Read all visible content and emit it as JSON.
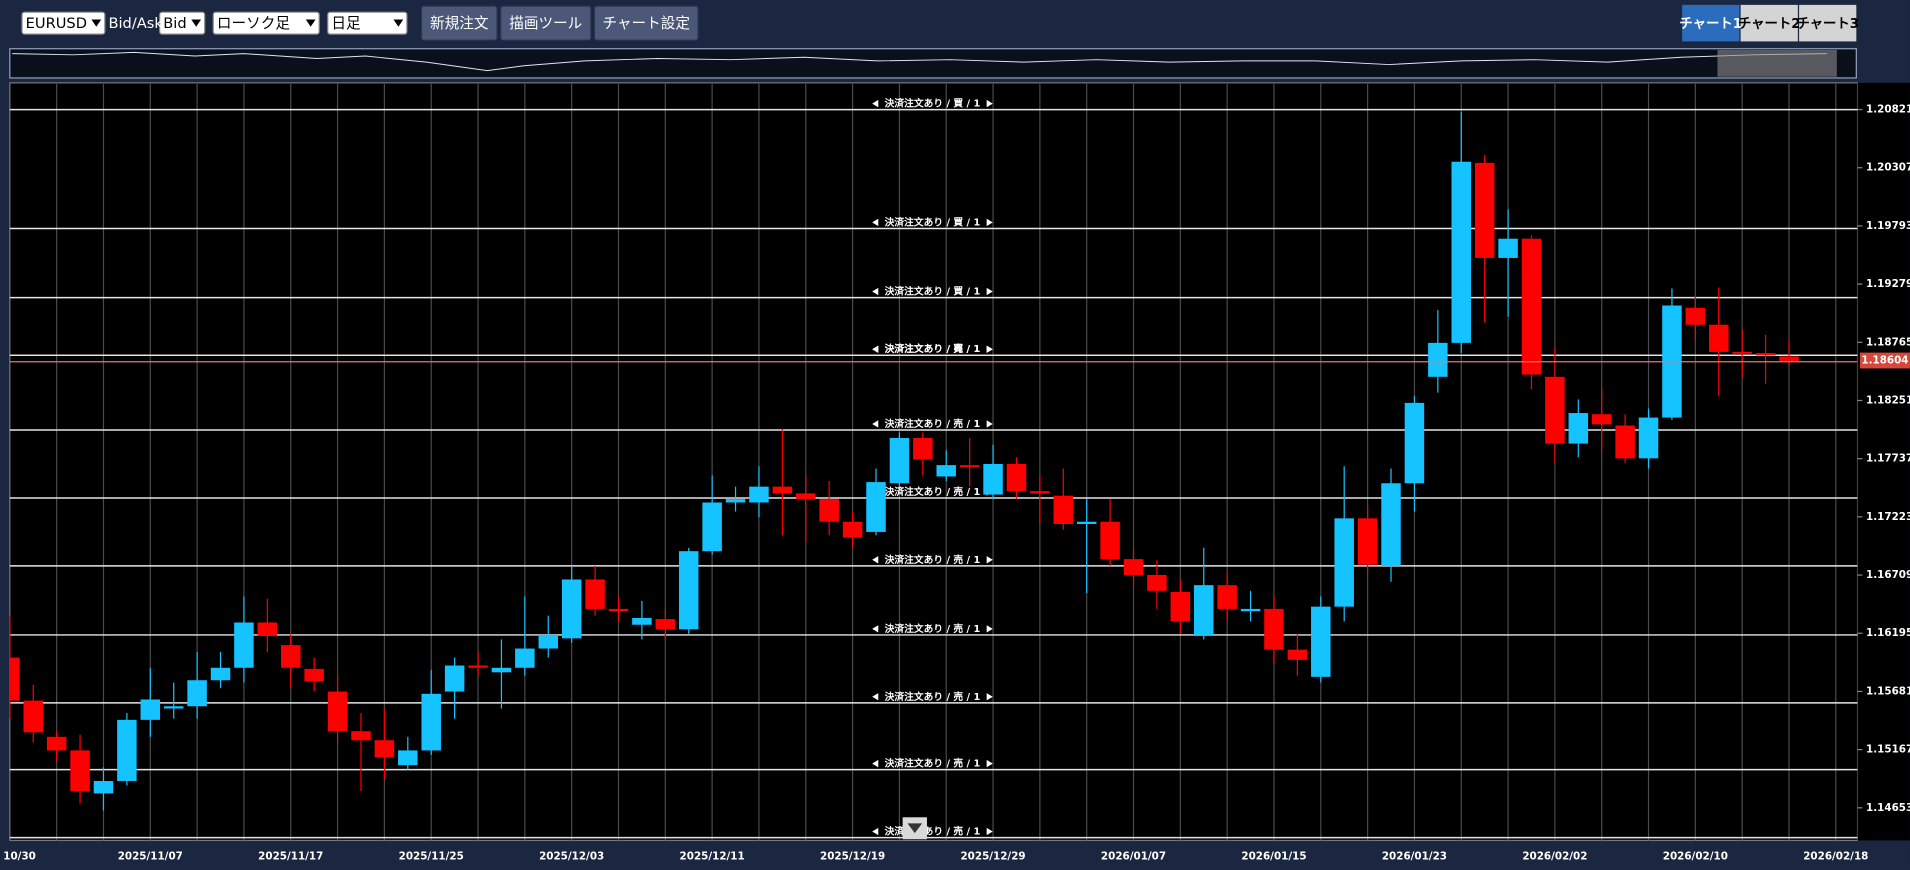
{
  "toolbar": {
    "symbol": "EURUSD",
    "bid_ask_label": "Bid/Ask",
    "price_type": "Bid",
    "chart_style": "ローソク足",
    "timeframe": "日足",
    "buttons": [
      "新規注文",
      "描画ツール",
      "チャート設定"
    ],
    "tabs": [
      "チャート1",
      "チャート2",
      "チャート3"
    ],
    "active_tab": 0
  },
  "chart_data": {
    "type": "candlestick",
    "up_color": "#14c3ff",
    "down_color": "#ff0000",
    "categories": [
      "10/30",
      null,
      null,
      null,
      null,
      null,
      "2025/11/07",
      null,
      null,
      null,
      null,
      null,
      "2025/11/17",
      null,
      null,
      null,
      null,
      null,
      "2025/11/25",
      null,
      null,
      null,
      null,
      null,
      "2025/12/03",
      null,
      null,
      null,
      null,
      null,
      "2025/12/11",
      null,
      null,
      null,
      null,
      null,
      "2025/12/19",
      null,
      null,
      null,
      null,
      null,
      "2025/12/29",
      null,
      null,
      null,
      null,
      null,
      "2026/01/07",
      null,
      null,
      null,
      null,
      null,
      "2026/01/15",
      null,
      null,
      null,
      null,
      null,
      "2026/01/23",
      null,
      null,
      null,
      null,
      null,
      "2026/02/02",
      null,
      null,
      null,
      null,
      null,
      "2026/02/10",
      null,
      null,
      null,
      null,
      null,
      "2026/02/18"
    ],
    "open": [
      1.1598,
      1.156,
      1.1528,
      1.1516,
      1.1478,
      1.1489,
      1.1543,
      1.1553,
      1.1555,
      1.1578,
      1.1589,
      1.1629,
      1.1609,
      1.1588,
      1.1568,
      1.1533,
      1.1525,
      1.1503,
      1.1516,
      1.1568,
      1.1591,
      1.1585,
      1.1589,
      1.1606,
      1.1615,
      1.1667,
      1.1641,
      1.1627,
      1.1632,
      1.1623,
      1.1692,
      1.1735,
      1.1735,
      1.1749,
      1.1743,
      1.1738,
      1.1718,
      1.1709,
      1.1752,
      1.1792,
      1.1758,
      1.1768,
      1.1742,
      1.1769,
      1.1745,
      1.1741,
      1.1716,
      1.1718,
      1.1685,
      1.1671,
      1.1656,
      1.1618,
      1.1662,
      1.1639,
      1.1641,
      1.1605,
      1.1581,
      1.1643,
      1.1721,
      1.1679,
      1.1752,
      1.1846,
      1.1876,
      1.2035,
      1.1951,
      1.1968,
      1.1846,
      1.1787,
      1.1813,
      1.1803,
      1.1774,
      1.181,
      1.1907,
      1.1892,
      1.1868,
      1.1867,
      1.1864,
      null,
      null
    ],
    "high": [
      1.1635,
      1.1574,
      1.1533,
      1.153,
      1.1501,
      1.1549,
      1.1589,
      1.1576,
      1.1603,
      1.1603,
      1.1652,
      1.165,
      1.1619,
      1.1598,
      1.1582,
      1.1549,
      1.1553,
      1.1528,
      1.1587,
      1.1598,
      1.1603,
      1.1614,
      1.1652,
      1.1635,
      1.1679,
      1.1679,
      1.1652,
      1.1648,
      1.1641,
      1.1695,
      1.1759,
      1.1749,
      1.1767,
      1.18,
      1.1759,
      1.1754,
      1.1727,
      1.1765,
      1.1797,
      1.1797,
      1.1781,
      1.1792,
      1.1786,
      1.1775,
      1.1759,
      1.1765,
      1.1738,
      1.1738,
      1.1695,
      1.1684,
      1.1667,
      1.1695,
      1.1673,
      1.1657,
      1.1652,
      1.1619,
      1.1652,
      1.1767,
      1.1732,
      1.1765,
      1.1829,
      1.1905,
      1.208,
      1.2042,
      1.1994,
      1.1971,
      1.1872,
      1.1826,
      1.1837,
      1.1813,
      1.1818,
      1.1924,
      1.1917,
      1.1925,
      1.1888,
      1.1883,
      1.1878,
      null,
      null
    ],
    "low": [
      1.1544,
      1.1523,
      1.1506,
      1.1469,
      1.1463,
      1.1485,
      1.1528,
      1.1544,
      1.1544,
      1.1571,
      1.1576,
      1.1603,
      1.1571,
      1.1568,
      1.1523,
      1.148,
      1.149,
      1.1499,
      1.1512,
      1.1544,
      1.1582,
      1.1553,
      1.1582,
      1.1598,
      1.1611,
      1.1635,
      1.163,
      1.1614,
      1.1614,
      1.1619,
      1.1689,
      1.1727,
      1.1722,
      1.1706,
      1.17,
      1.1706,
      1.1695,
      1.1706,
      1.1749,
      1.1759,
      1.1754,
      1.1749,
      1.1738,
      1.1738,
      1.1716,
      1.1711,
      1.1655,
      1.1679,
      1.1662,
      1.1641,
      1.1619,
      1.1614,
      1.163,
      1.163,
      1.1592,
      1.1582,
      1.1576,
      1.163,
      1.1673,
      1.1665,
      1.1727,
      1.1832,
      1.1867,
      1.1894,
      1.1899,
      1.1835,
      1.177,
      1.1775,
      1.1781,
      1.177,
      1.1765,
      1.1808,
      1.1878,
      1.1829,
      1.1845,
      1.184,
      1.1856,
      null,
      null
    ],
    "close": [
      1.156,
      1.1532,
      1.1516,
      1.148,
      1.1489,
      1.1543,
      1.1561,
      1.1555,
      1.1578,
      1.1589,
      1.1629,
      1.1617,
      1.1589,
      1.1577,
      1.1533,
      1.1525,
      1.151,
      1.1516,
      1.1566,
      1.1591,
      1.1589,
      1.1589,
      1.1606,
      1.1618,
      1.1667,
      1.1641,
      1.1639,
      1.1633,
      1.1623,
      1.1692,
      1.1735,
      1.1738,
      1.1749,
      1.1743,
      1.1738,
      1.1718,
      1.1704,
      1.1753,
      1.1792,
      1.1773,
      1.1768,
      1.1767,
      1.1769,
      1.1745,
      1.1743,
      1.1716,
      1.1718,
      1.1685,
      1.1671,
      1.1657,
      1.163,
      1.1662,
      1.1641,
      1.1641,
      1.1605,
      1.1596,
      1.1643,
      1.1721,
      1.168,
      1.1752,
      1.1823,
      1.1876,
      1.2036,
      1.1951,
      1.1968,
      1.1848,
      1.1787,
      1.1814,
      1.1804,
      1.1774,
      1.181,
      1.1909,
      1.1892,
      1.1868,
      1.1867,
      1.1865,
      1.186,
      null,
      null
    ],
    "ylim": [
      1.14365,
      1.21057
    ],
    "yticks": [
      1.20821,
      1.20307,
      1.19793,
      1.19279,
      1.18765,
      1.18251,
      1.17737,
      1.17223,
      1.16709,
      1.16195,
      1.15681,
      1.15167,
      1.14653
    ],
    "current_price": 1.18604,
    "order_lines": [
      {
        "price": 1.2082,
        "label": "決済注文あり / 買 / 1"
      },
      {
        "price": 1.1977,
        "label": "決済注文あり / 買 / 1"
      },
      {
        "price": 1.1916,
        "label": "決済注文あり / 買 / 1"
      },
      {
        "price": 1.1865,
        "label": "決済注文あり / 買 / 1"
      },
      {
        "price": 1.1865,
        "label": "決済注文あり / 売 / 1"
      },
      {
        "price": 1.1799,
        "label": "決済注文あり / 売 / 1"
      },
      {
        "price": 1.1739,
        "label": "決済注文あり / 売 / 1"
      },
      {
        "price": 1.1679,
        "label": "決済注文あり / 売 / 1"
      },
      {
        "price": 1.1618,
        "label": "決済注文あり / 売 / 1"
      },
      {
        "price": 1.1558,
        "label": "決済注文あり / 売 / 1"
      },
      {
        "price": 1.1499,
        "label": "決済注文あり / 売 / 1"
      },
      {
        "price": 1.1439,
        "label": "決済注文あり / 売 / 1"
      }
    ]
  }
}
